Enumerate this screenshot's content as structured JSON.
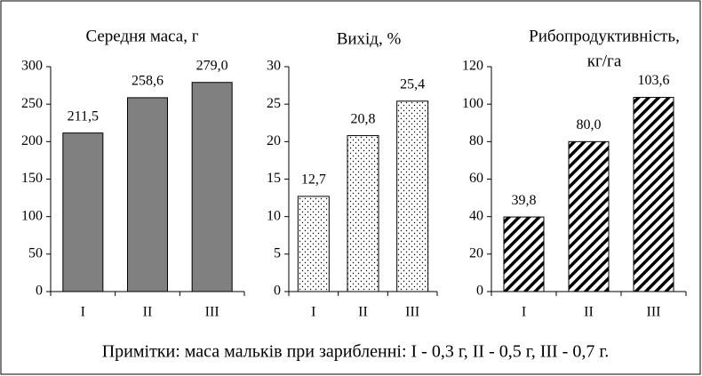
{
  "chart_data": [
    {
      "type": "bar",
      "title": "Середня маса, г",
      "categories": [
        "I",
        "II",
        "III"
      ],
      "values": [
        211.5,
        258.6,
        279.0
      ],
      "value_labels": [
        "211,5",
        "258,6",
        "279,0"
      ],
      "color": "#808080",
      "pattern": "solid",
      "ylim": [
        0,
        300
      ],
      "yticks": [
        0,
        50,
        100,
        150,
        200,
        250,
        300
      ]
    },
    {
      "type": "bar",
      "title": "Вихід, %",
      "categories": [
        "I",
        "II",
        "III"
      ],
      "values": [
        12.7,
        20.8,
        25.4
      ],
      "value_labels": [
        "12,7",
        "20,8",
        "25,4"
      ],
      "color": "#000000",
      "pattern": "dots",
      "ylim": [
        0,
        30
      ],
      "yticks": [
        0,
        5,
        10,
        15,
        20,
        25,
        30
      ]
    },
    {
      "type": "bar",
      "title": [
        "Рибопродуктивність,",
        "кг/га"
      ],
      "categories": [
        "I",
        "II",
        "III"
      ],
      "values": [
        39.8,
        80.0,
        103.6
      ],
      "value_labels": [
        "39,8",
        "80,0",
        "103,6"
      ],
      "color": "#000000",
      "pattern": "hatch",
      "ylim": [
        0,
        120
      ],
      "yticks": [
        0,
        20,
        40,
        60,
        80,
        100,
        120
      ]
    }
  ],
  "note": "Примітки: маса мальків при зарибленні: I - 0,3 г, II - 0,5 г, III - 0,7 г."
}
